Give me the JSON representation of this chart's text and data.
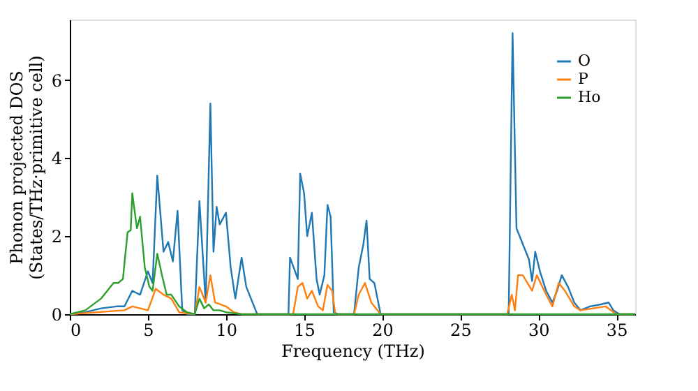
{
  "chart_data": {
    "type": "line",
    "xlabel": "Frequency (THz)",
    "ylabel": "Phonon projected DOS\n(States/THz·primitive cell)",
    "xlim": [
      0,
      36.2
    ],
    "ylim": [
      0,
      7.55
    ],
    "xticks": [
      0,
      5,
      10,
      15,
      20,
      25,
      30,
      35
    ],
    "yticks": [
      0,
      2,
      4,
      6
    ],
    "grid": false,
    "legend": "top right",
    "marker": "none",
    "line_style": "solid",
    "series": [
      {
        "name": "O",
        "color": "#1f77b4",
        "x": [
          0,
          1,
          2,
          3,
          3.5,
          4,
          4.5,
          5,
          5.3,
          5.6,
          6,
          6.3,
          6.6,
          6.9,
          7.2,
          7.5,
          8,
          8.3,
          8.7,
          9,
          9.2,
          9.4,
          9.6,
          10,
          10.3,
          10.6,
          11,
          11.3,
          11.6,
          12,
          14,
          14.1,
          14.6,
          14.75,
          15,
          15.2,
          15.5,
          15.8,
          16,
          16.3,
          16.5,
          16.7,
          16.9,
          17.2,
          18.2,
          18.5,
          18.8,
          19,
          19.2,
          19.5,
          19.9,
          28.1,
          28.35,
          28.6,
          29.4,
          29.6,
          29.8,
          30.1,
          30.5,
          30.9,
          31.2,
          31.5,
          31.9,
          32.3,
          32.7,
          33.3,
          34,
          34.5,
          34.8,
          35.2,
          36.2
        ],
        "values": [
          0,
          0.05,
          0.15,
          0.2,
          0.2,
          0.6,
          0.5,
          1.1,
          0.8,
          3.55,
          1.6,
          1.85,
          1.35,
          2.65,
          0.1,
          0,
          0,
          2.9,
          0.3,
          5.4,
          1.6,
          2.75,
          2.3,
          2.6,
          1.2,
          0.4,
          1.45,
          0.7,
          0.4,
          0,
          0,
          1.45,
          0.9,
          3.6,
          3.1,
          2.0,
          2.6,
          0.9,
          0.5,
          1.0,
          2.8,
          2.5,
          0.05,
          0,
          0,
          1.2,
          1.8,
          2.4,
          0.9,
          0.8,
          0,
          0,
          7.2,
          2.2,
          1.4,
          0.85,
          1.6,
          1.1,
          0.6,
          0.3,
          0.6,
          1.0,
          0.7,
          0.3,
          0.1,
          0.2,
          0.25,
          0.3,
          0.1,
          0,
          0
        ]
      },
      {
        "name": "P",
        "color": "#ff7f0e",
        "x": [
          0,
          3.5,
          4,
          4.5,
          5,
          5.5,
          6,
          6.5,
          7,
          8,
          8.3,
          8.7,
          9,
          9.3,
          10,
          10.5,
          11,
          14.3,
          14.6,
          14.9,
          15.2,
          15.5,
          15.9,
          16.2,
          16.5,
          16.8,
          17,
          18.2,
          18.5,
          18.9,
          19.3,
          19.9,
          28,
          28.3,
          28.5,
          28.7,
          29,
          29.6,
          29.9,
          30.5,
          30.9,
          31.3,
          31.7,
          32.3,
          32.7,
          34.3,
          35,
          36.2
        ],
        "values": [
          0,
          0.1,
          0.2,
          0.15,
          0.1,
          0.65,
          0.5,
          0.4,
          0.05,
          0,
          0.7,
          0.3,
          1.0,
          0.3,
          0.2,
          0.05,
          0,
          0,
          0.7,
          0.8,
          0.4,
          0.6,
          0.2,
          0.1,
          0.75,
          0.6,
          0,
          0,
          0.5,
          0.8,
          0.3,
          0,
          0,
          0.5,
          0.1,
          1.0,
          1.0,
          0.6,
          1.0,
          0.5,
          0.2,
          0.8,
          0.6,
          0.2,
          0.1,
          0.2,
          0,
          0
        ]
      },
      {
        "name": "Ho",
        "color": "#2ca02c",
        "x": [
          0,
          1,
          2,
          2.8,
          3.1,
          3.4,
          3.7,
          3.9,
          4.0,
          4.3,
          4.5,
          4.8,
          5.1,
          5.3,
          5.6,
          5.9,
          6.2,
          6.5,
          7.0,
          7.5,
          8,
          8.3,
          8.6,
          8.9,
          9.2,
          9.6,
          10,
          11,
          20,
          36.2
        ],
        "values": [
          0,
          0.1,
          0.4,
          0.8,
          0.8,
          0.9,
          2.1,
          2.15,
          3.1,
          2.2,
          2.5,
          1.2,
          0.7,
          0.6,
          1.55,
          1.0,
          0.5,
          0.5,
          0.2,
          0.05,
          0,
          0.4,
          0.15,
          0.25,
          0.1,
          0.1,
          0.05,
          0,
          0,
          0
        ]
      }
    ]
  }
}
